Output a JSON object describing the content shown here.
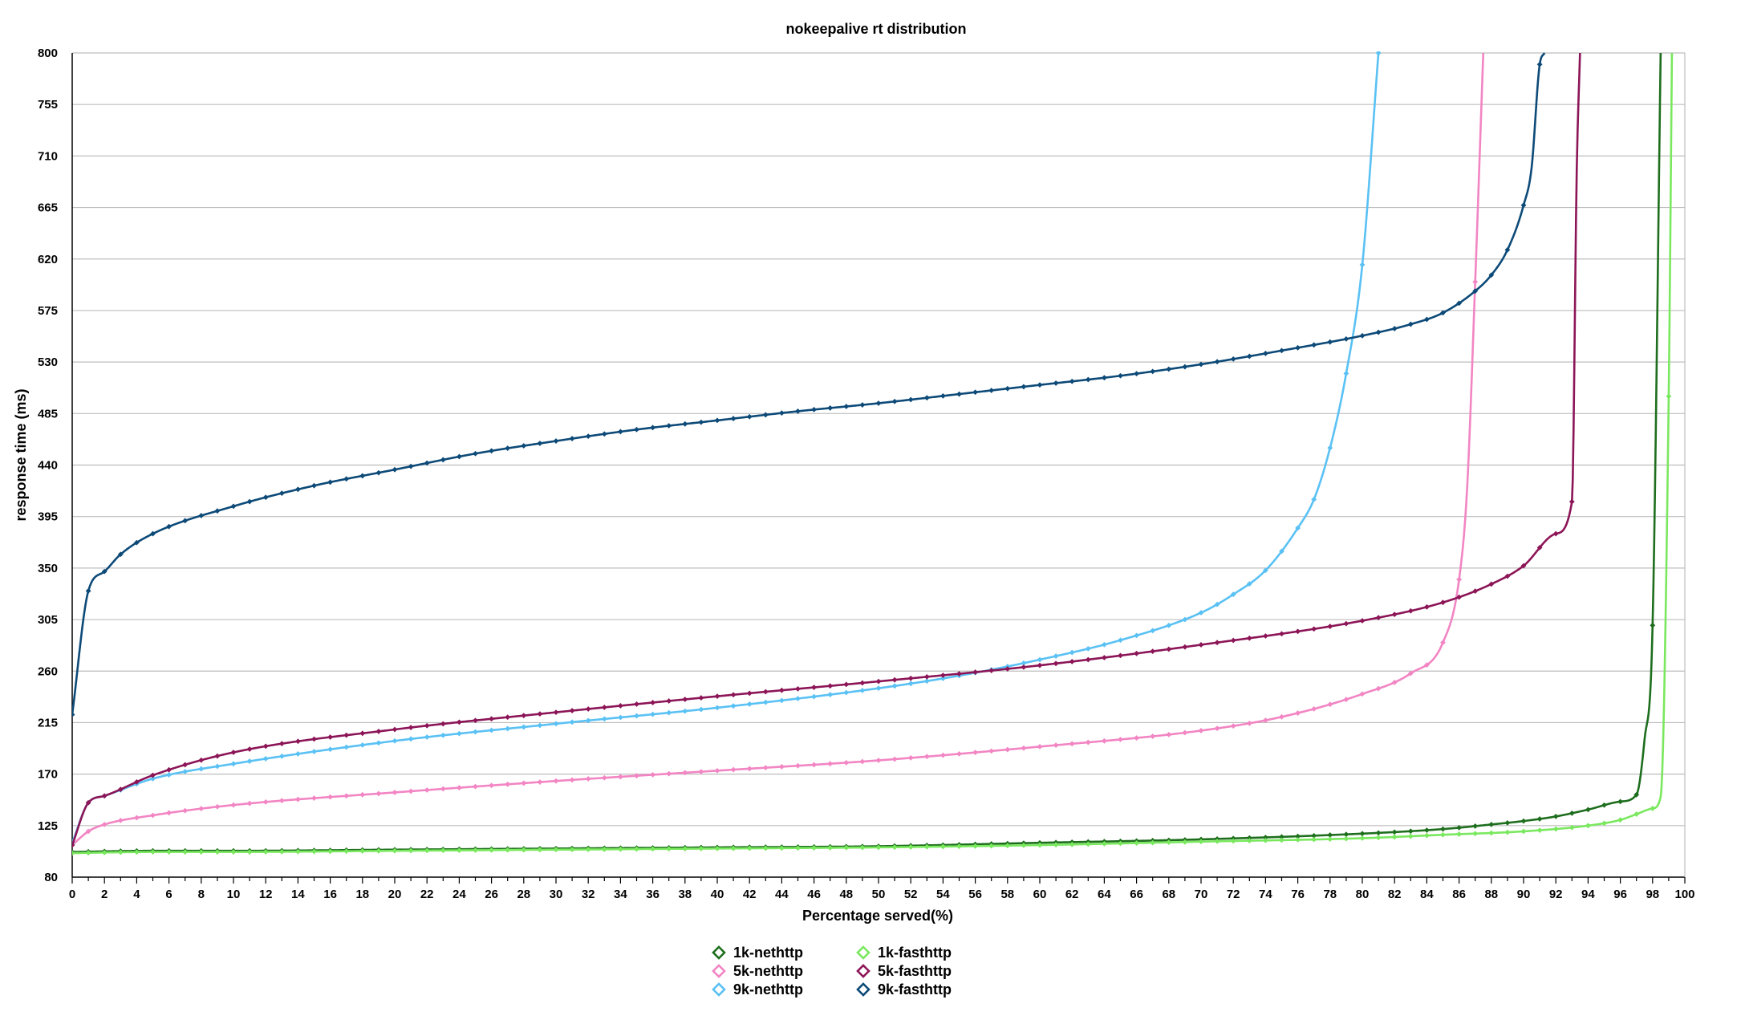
{
  "chart_data": {
    "type": "line",
    "title": "nokeepalive rt distribution",
    "xlabel": "Percentage served(%)",
    "ylabel": "response  time (ms)",
    "xlim": [
      0,
      100
    ],
    "ylim": [
      80,
      800
    ],
    "xticks": [
      "0",
      "2",
      "4",
      "6",
      "8",
      "10",
      "12",
      "14",
      "16",
      "18",
      "20",
      "22",
      "24",
      "26",
      "28",
      "30",
      "32",
      "34",
      "36",
      "38",
      "40",
      "42",
      "44",
      "46",
      "48",
      "50",
      "52",
      "54",
      "56",
      "58",
      "60",
      "62",
      "64",
      "66",
      "68",
      "70",
      "72",
      "74",
      "76",
      "78",
      "80",
      "82",
      "84",
      "86",
      "88",
      "90",
      "92",
      "94",
      "96",
      "98",
      "100"
    ],
    "yticks": [
      "80",
      "125",
      "170",
      "215",
      "260",
      "305",
      "350",
      "395",
      "440",
      "485",
      "530",
      "575",
      "620",
      "665",
      "710",
      "755",
      "800"
    ],
    "grid": true,
    "legend_position": "bottom-center",
    "series": [
      {
        "name": "1k-nethttp",
        "color": "#1e6e1e",
        "x": [
          0,
          5,
          10,
          20,
          30,
          40,
          50,
          60,
          70,
          80,
          85,
          88,
          90,
          92,
          94,
          96,
          97,
          97.5,
          98,
          98.5
        ],
        "y": [
          102,
          103,
          103,
          104,
          105,
          106,
          107,
          110,
          113,
          118,
          122,
          126,
          129,
          133,
          139,
          146,
          152,
          200,
          300,
          800
        ]
      },
      {
        "name": "5k-nethttp",
        "color": "#f285c3",
        "x": [
          0,
          1,
          2,
          5,
          10,
          20,
          30,
          40,
          50,
          60,
          70,
          75,
          80,
          83,
          85,
          86,
          86.5,
          87,
          87.5
        ],
        "y": [
          108,
          120,
          126,
          134,
          143,
          154,
          164,
          173,
          182,
          194,
          208,
          220,
          240,
          258,
          285,
          340,
          420,
          600,
          800
        ]
      },
      {
        "name": "9k-nethttp",
        "color": "#5ac1f4",
        "x": [
          0,
          1,
          2,
          5,
          10,
          20,
          30,
          40,
          50,
          55,
          60,
          65,
          70,
          72,
          74,
          76,
          77,
          78,
          79,
          80,
          81
        ],
        "y": [
          110,
          145,
          151,
          166,
          179,
          199,
          214,
          228,
          245,
          256,
          270,
          287,
          311,
          327,
          348,
          385,
          410,
          455,
          520,
          615,
          800
        ]
      },
      {
        "name": "1k-fasthttp",
        "color": "#7ae85e",
        "x": [
          0,
          5,
          10,
          20,
          30,
          40,
          50,
          60,
          70,
          80,
          85,
          90,
          94,
          96,
          97,
          98,
          98.5,
          99,
          99.2
        ],
        "y": [
          101,
          102,
          102,
          103,
          104,
          105,
          106,
          108,
          111,
          114,
          117,
          120,
          125,
          130,
          135,
          140,
          150,
          500,
          800
        ]
      },
      {
        "name": "5k-fasthttp",
        "color": "#8c1557",
        "x": [
          0,
          1,
          2,
          5,
          10,
          20,
          30,
          40,
          50,
          60,
          70,
          80,
          85,
          88,
          90,
          92,
          93,
          93.3,
          93.5
        ],
        "y": [
          108,
          145,
          151,
          169,
          189,
          209,
          224,
          238,
          251,
          265,
          283,
          304,
          320,
          336,
          352,
          380,
          408,
          700,
          800
        ]
      },
      {
        "name": "9k-fasthttp",
        "color": "#0d4a78",
        "x": [
          0,
          1,
          2,
          3,
          5,
          10,
          15,
          20,
          25,
          30,
          35,
          40,
          45,
          50,
          55,
          60,
          65,
          70,
          75,
          80,
          83,
          85,
          87,
          88,
          89,
          90,
          90.5,
          91,
          91.3
        ],
        "y": [
          222,
          330,
          347,
          362,
          380,
          404,
          422,
          436,
          450,
          461,
          471,
          479,
          487,
          494,
          502,
          510,
          518,
          528,
          540,
          553,
          563,
          573,
          592,
          606,
          628,
          667,
          700,
          790,
          800
        ]
      }
    ]
  }
}
